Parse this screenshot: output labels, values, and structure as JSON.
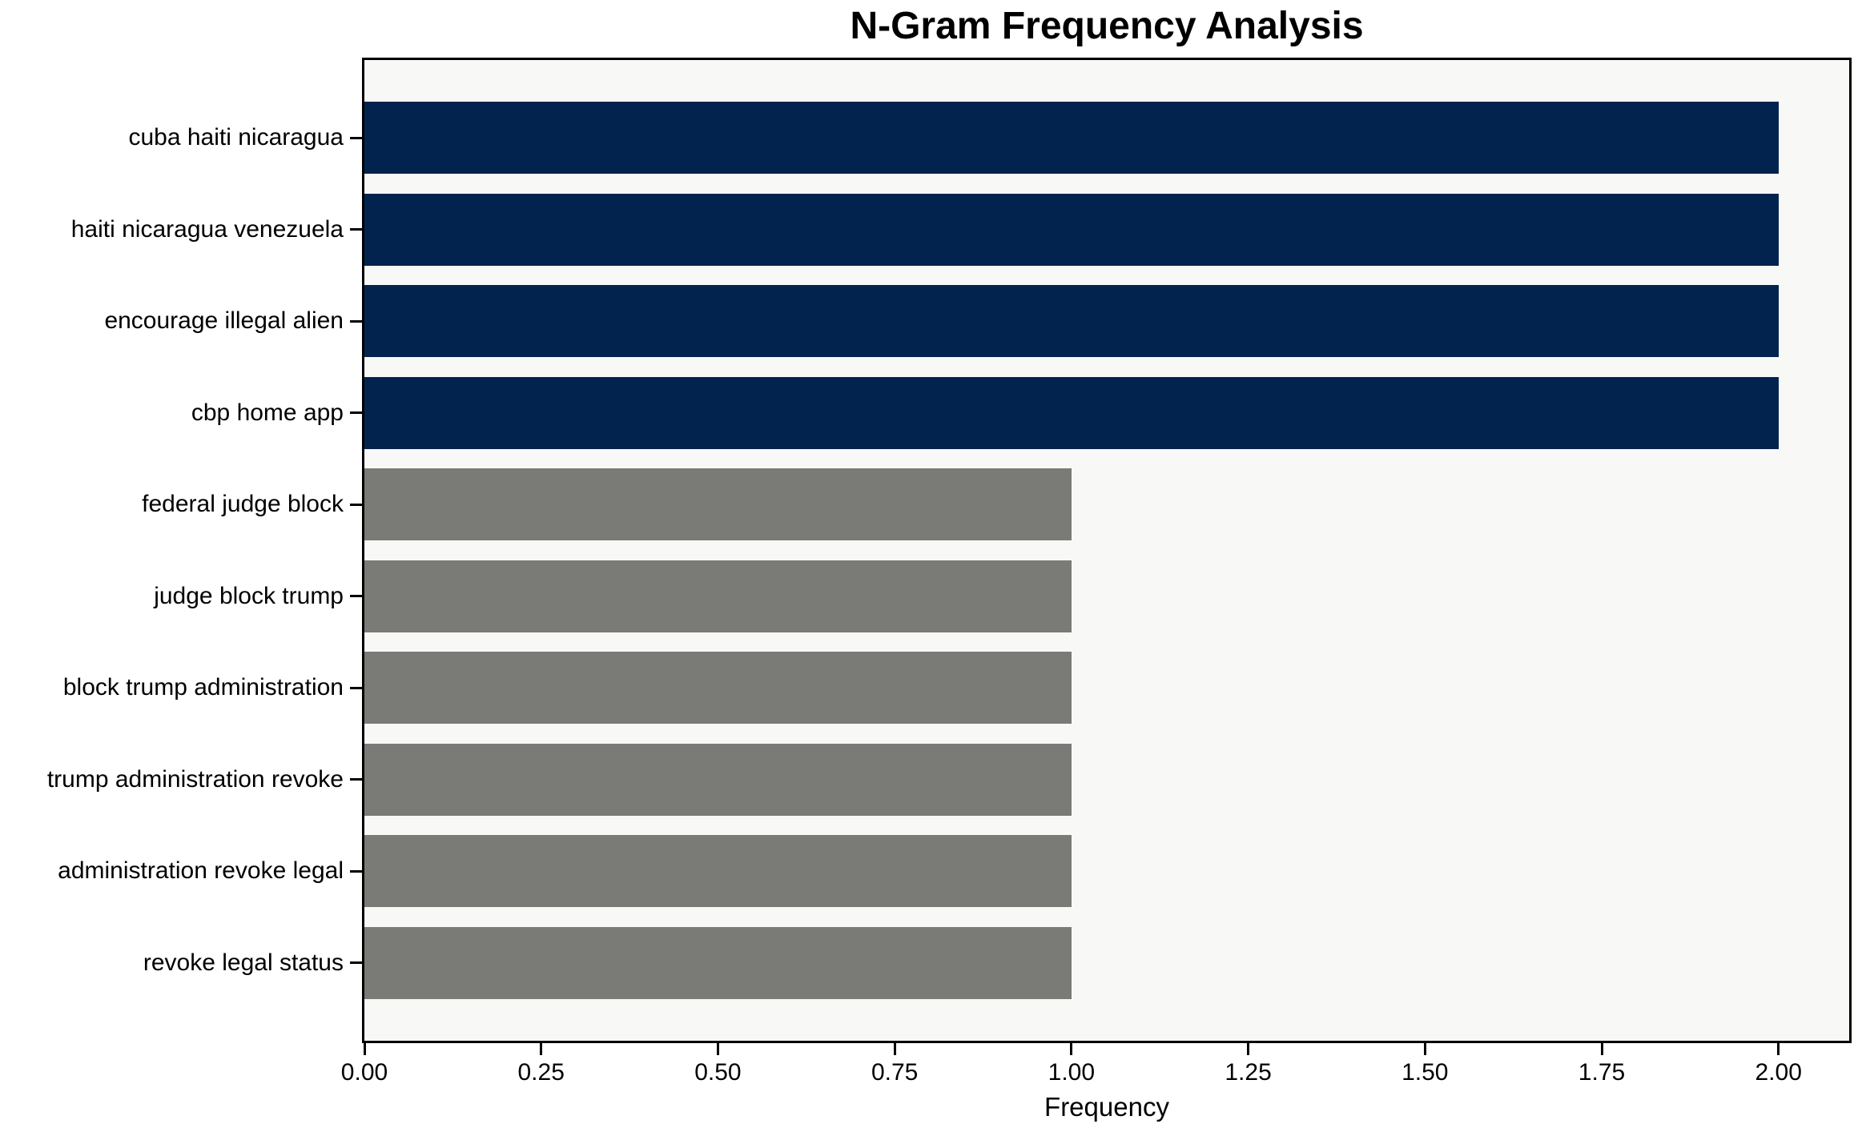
{
  "chart_data": {
    "type": "bar",
    "orientation": "horizontal",
    "title": "N-Gram Frequency Analysis",
    "xlabel": "Frequency",
    "ylabel": "",
    "categories": [
      "cuba haiti nicaragua",
      "haiti nicaragua venezuela",
      "encourage illegal alien",
      "cbp home app",
      "federal judge block",
      "judge block trump",
      "block trump administration",
      "trump administration revoke",
      "administration revoke legal",
      "revoke legal status"
    ],
    "values": [
      2,
      2,
      2,
      2,
      1,
      1,
      1,
      1,
      1,
      1
    ],
    "bar_colors": [
      "#02234E",
      "#02234E",
      "#02234E",
      "#02234E",
      "#7A7A76",
      "#7A7A76",
      "#7A7A76",
      "#7A7A76",
      "#7A7A76",
      "#7A7A76"
    ],
    "xlim": [
      0,
      2.1
    ],
    "xticks": [
      0,
      0.25,
      0.5,
      0.75,
      1.0,
      1.25,
      1.5,
      1.75,
      2.0
    ],
    "xtick_labels": [
      "0.00",
      "0.25",
      "0.50",
      "0.75",
      "1.00",
      "1.25",
      "1.50",
      "1.75",
      "2.00"
    ],
    "grid": false,
    "legend": null,
    "bar_relative_height": 0.8,
    "colors": {
      "high_frequency_bar": "#02234E",
      "low_frequency_bar": "#7A7A76",
      "plot_background": "#F8F8F7",
      "figure_background": "#FFFFFF",
      "spine": "#000000",
      "text": "#000000"
    }
  }
}
